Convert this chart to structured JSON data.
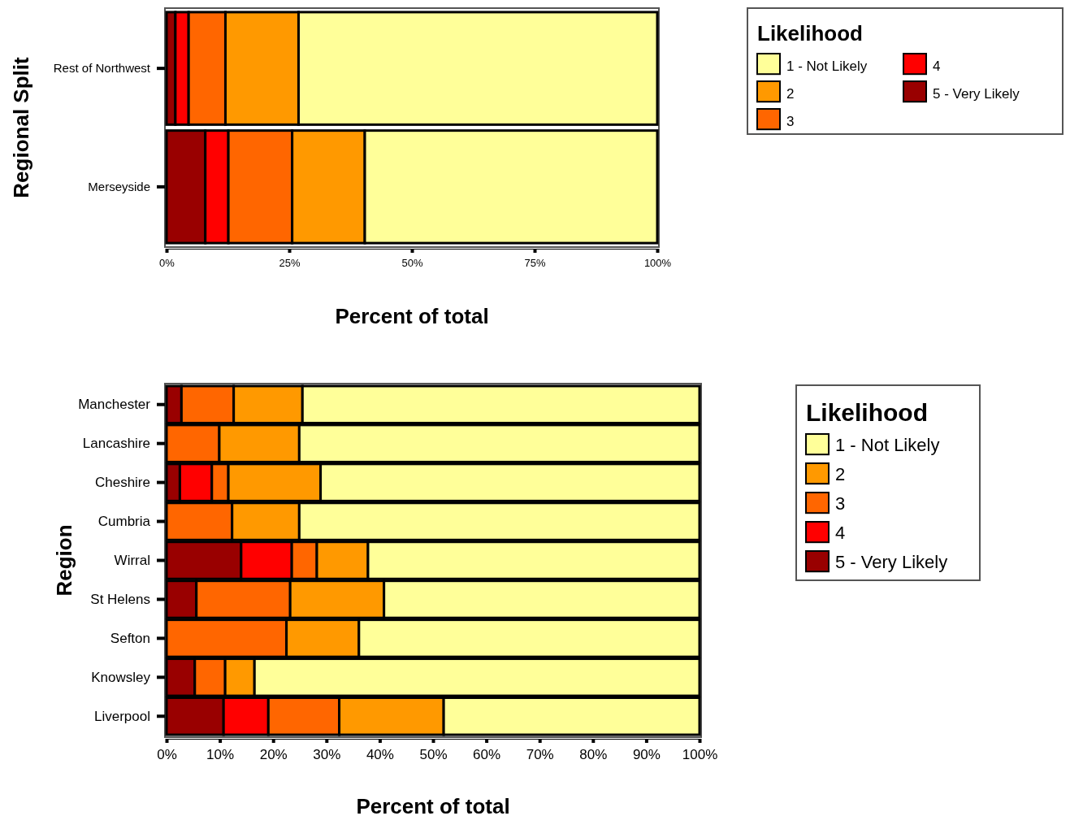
{
  "chart_data": [
    {
      "type": "bar",
      "orientation": "horizontal",
      "stacked": true,
      "ylabel": "Regional Split",
      "xlabel": "Percent of total",
      "legend_title": "Likelihood",
      "legend": "top right",
      "categories": [
        "Rest of Northwest",
        "Merseyside"
      ],
      "series": [
        {
          "name": "5 - Very Likely",
          "color": "#990000",
          "values": [
            1.8,
            7.9
          ]
        },
        {
          "name": "4",
          "color": "#ff0000",
          "values": [
            2.7,
            4.7
          ]
        },
        {
          "name": "3",
          "color": "#ff6600",
          "values": [
            7.5,
            13.0
          ]
        },
        {
          "name": "2",
          "color": "#ff9900",
          "values": [
            14.9,
            14.8
          ]
        },
        {
          "name": "1 - Not Likely",
          "color": "#ffff99",
          "values": [
            73.1,
            59.6
          ]
        }
      ],
      "xlim": [
        0,
        100
      ],
      "xticks": [
        {
          "value": 0,
          "label": "0%"
        },
        {
          "value": 25,
          "label": "25%"
        },
        {
          "value": 50,
          "label": "50%"
        },
        {
          "value": 75,
          "label": "75%"
        },
        {
          "value": 100,
          "label": "100%"
        }
      ]
    },
    {
      "type": "bar",
      "orientation": "horizontal",
      "stacked": true,
      "ylabel": "Region",
      "xlabel": "Percent of total",
      "legend_title": "Likelihood",
      "legend": "right",
      "categories": [
        "Manchester",
        "Lancashire",
        "Cheshire",
        "Cumbria",
        "Wirral",
        "St Helens",
        "Sefton",
        "Knowsley",
        "Liverpool"
      ],
      "series": [
        {
          "name": "5 - Very Likely",
          "color": "#990000",
          "values": [
            2.8,
            0,
            2.5,
            0,
            14.0,
            5.6,
            0,
            5.3,
            10.7
          ]
        },
        {
          "name": "4",
          "color": "#ff0000",
          "values": [
            0,
            0,
            6.0,
            0,
            9.5,
            0,
            0,
            0,
            8.4
          ]
        },
        {
          "name": "3",
          "color": "#ff6600",
          "values": [
            9.8,
            9.9,
            3.1,
            12.3,
            4.7,
            17.6,
            22.5,
            5.7,
            13.3
          ]
        },
        {
          "name": "2",
          "color": "#ff9900",
          "values": [
            12.9,
            15.0,
            17.3,
            12.6,
            9.6,
            17.6,
            13.6,
            5.5,
            19.6
          ]
        },
        {
          "name": "1 - Not Likely",
          "color": "#ffff99",
          "values": [
            74.5,
            75.1,
            71.1,
            75.1,
            62.2,
            59.2,
            63.9,
            83.5,
            48.0
          ]
        }
      ],
      "xlim": [
        0,
        100
      ],
      "xticks": [
        {
          "value": 0,
          "label": "0%"
        },
        {
          "value": 10,
          "label": "10%"
        },
        {
          "value": 20,
          "label": "20%"
        },
        {
          "value": 30,
          "label": "30%"
        },
        {
          "value": 40,
          "label": "40%"
        },
        {
          "value": 50,
          "label": "50%"
        },
        {
          "value": 60,
          "label": "60%"
        },
        {
          "value": 70,
          "label": "70%"
        },
        {
          "value": 80,
          "label": "80%"
        },
        {
          "value": 90,
          "label": "90%"
        },
        {
          "value": 100,
          "label": "100%"
        }
      ]
    }
  ]
}
